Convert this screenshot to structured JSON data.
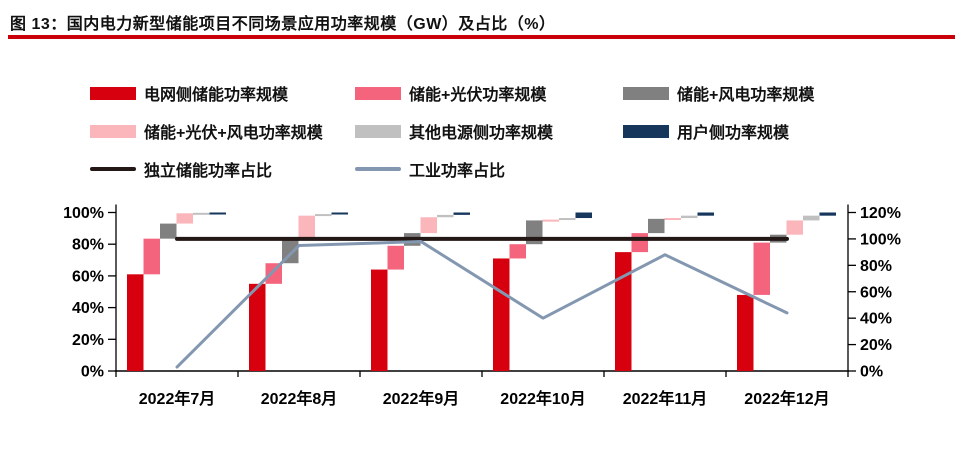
{
  "title": {
    "text": "图 13：国内电力新型储能项目不同场景应用功率规模（GW）及占比（%）",
    "underline_color": "#c9000a"
  },
  "colors": {
    "grid_red": "#d7000f",
    "storage_pv": "#f4657d",
    "storage_wind": "#808080",
    "storage_pv_wind": "#fbb6bc",
    "other_supply": "#c0c0c0",
    "user_side": "#16365c",
    "independent_line": "#231815",
    "industry_line": "#8497b0",
    "axis": "#000000"
  },
  "chart_data": {
    "type": "bar",
    "subtype": "stacked-waterfall with overlay lines",
    "categories": [
      "2022年7月",
      "2022年8月",
      "2022年9月",
      "2022年10月",
      "2022年11月",
      "2022年12月"
    ],
    "bar_series": [
      {
        "name": "电网侧储能功率规模",
        "color_key": "grid_red",
        "values": [
          61,
          55,
          64,
          71,
          75,
          48
        ]
      },
      {
        "name": "储能+光伏功率规模",
        "color_key": "storage_pv",
        "values": [
          22.5,
          13,
          15,
          9,
          12,
          33
        ]
      },
      {
        "name": "储能+风电功率规模",
        "color_key": "storage_wind",
        "values": [
          9.5,
          16,
          8,
          15,
          9,
          5
        ]
      },
      {
        "name": "储能+光伏+风电功率规模",
        "color_key": "storage_pv_wind",
        "values": [
          6.5,
          14,
          10,
          0.5,
          0.5,
          9
        ]
      },
      {
        "name": "其他电源侧功率规模",
        "color_key": "other_supply",
        "values": [
          0.3,
          1,
          1.5,
          1,
          1.5,
          3
        ]
      },
      {
        "name": "用户侧功率规模",
        "color_key": "user_side",
        "values": [
          0.2,
          1,
          1.5,
          3.5,
          2,
          2
        ]
      }
    ],
    "line_series": [
      {
        "name": "独立储能功率占比",
        "color_key": "independent_line",
        "axis": "right",
        "values": [
          100,
          100,
          100,
          100,
          100,
          100
        ]
      },
      {
        "name": "工业功率占比",
        "color_key": "industry_line",
        "axis": "right",
        "values": [
          3,
          95,
          98,
          40,
          88,
          44
        ]
      }
    ],
    "left_axis": {
      "min": 0,
      "max": 100,
      "ticks": [
        "0%",
        "20%",
        "40%",
        "60%",
        "80%",
        "100%"
      ]
    },
    "right_axis": {
      "min": 0,
      "max": 120,
      "ticks": [
        "0%",
        "20%",
        "40%",
        "60%",
        "80%",
        "100%",
        "120%"
      ]
    },
    "legend_position": "top",
    "grid": false,
    "note": "Each month: 6 floating segments stacked left-to-right (waterfall) summing to 100% on the left axis; two lines read on the right axis."
  }
}
